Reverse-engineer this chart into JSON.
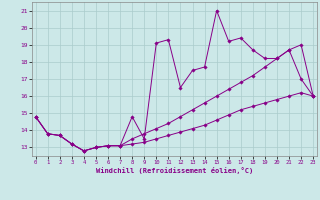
{
  "bg_color": "#cce8e8",
  "line_color": "#880088",
  "grid_color": "#aacccc",
  "xlim": [
    -0.3,
    23.3
  ],
  "ylim": [
    12.5,
    21.5
  ],
  "xticks": [
    0,
    1,
    2,
    3,
    4,
    5,
    6,
    7,
    8,
    9,
    10,
    11,
    12,
    13,
    14,
    15,
    16,
    17,
    18,
    19,
    20,
    21,
    22,
    23
  ],
  "yticks": [
    13,
    14,
    15,
    16,
    17,
    18,
    19,
    20,
    21
  ],
  "xlabel": "Windchill (Refroidissement éolien,°C)",
  "line1_x": [
    0,
    1,
    2,
    3,
    4,
    5,
    6,
    7,
    8,
    9,
    10,
    11,
    12,
    13,
    14,
    15,
    16,
    17,
    18,
    19,
    20,
    21,
    22,
    23
  ],
  "line1_y": [
    14.8,
    13.8,
    13.7,
    13.2,
    12.8,
    13.0,
    13.1,
    13.1,
    14.8,
    13.5,
    19.1,
    19.3,
    16.5,
    17.5,
    17.7,
    21.0,
    19.2,
    19.4,
    18.7,
    18.2,
    18.2,
    18.7,
    17.0,
    16.0
  ],
  "line2_x": [
    0,
    1,
    2,
    3,
    4,
    5,
    6,
    7,
    8,
    9,
    10,
    11,
    12,
    13,
    14,
    15,
    16,
    17,
    18,
    19,
    20,
    21,
    22,
    23
  ],
  "line2_y": [
    14.8,
    13.8,
    13.7,
    13.2,
    12.8,
    13.0,
    13.1,
    13.1,
    13.5,
    13.8,
    14.1,
    14.4,
    14.8,
    15.2,
    15.6,
    16.0,
    16.4,
    16.8,
    17.2,
    17.7,
    18.2,
    18.7,
    19.0,
    16.0
  ],
  "line3_x": [
    0,
    1,
    2,
    3,
    4,
    5,
    6,
    7,
    8,
    9,
    10,
    11,
    12,
    13,
    14,
    15,
    16,
    17,
    18,
    19,
    20,
    21,
    22,
    23
  ],
  "line3_y": [
    14.8,
    13.8,
    13.7,
    13.2,
    12.8,
    13.0,
    13.1,
    13.1,
    13.2,
    13.3,
    13.5,
    13.7,
    13.9,
    14.1,
    14.3,
    14.6,
    14.9,
    15.2,
    15.4,
    15.6,
    15.8,
    16.0,
    16.2,
    16.0
  ]
}
